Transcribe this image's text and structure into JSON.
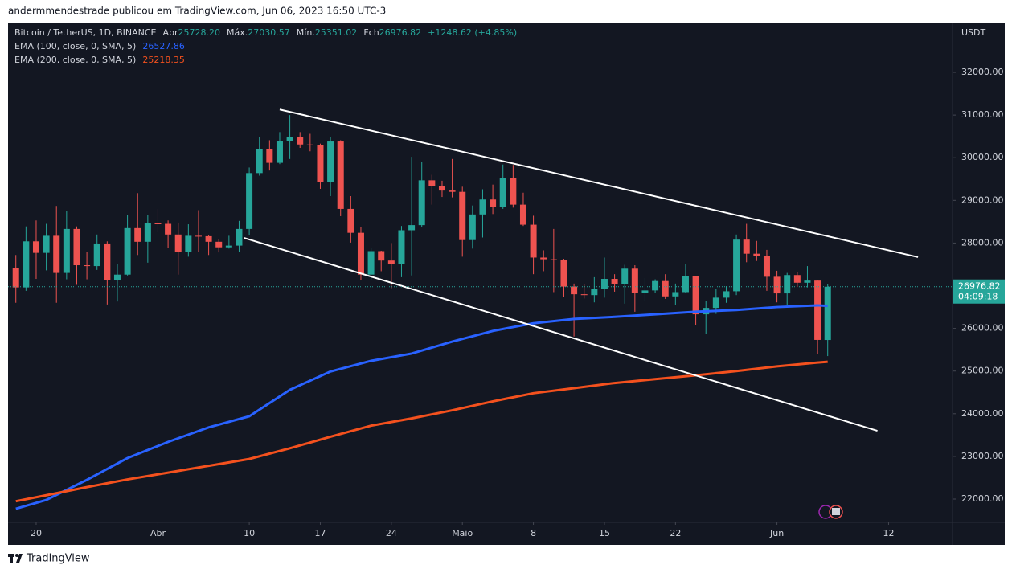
{
  "header": "andermmendestrade publicou em TradingView.com, Jun 06, 2023 16:50 UTC-3",
  "footer": "TradingView",
  "chart_data": {
    "type": "candlestick",
    "title": "Bitcoin / TetherUS, 1D, BINANCE",
    "ohlc_legend": [
      {
        "label": "Abr",
        "value": "25728.20"
      },
      {
        "label": "Máx.",
        "value": "27030.57"
      },
      {
        "label": "Mín.",
        "value": "25351.02"
      },
      {
        "label": "Fch",
        "value": "26976.82"
      }
    ],
    "change": "+1248.62 (+4.85%)",
    "axis_unit": "USDT",
    "countdown": "04:09:18",
    "up_color": "#26a69a",
    "down_color": "#ef5350",
    "x": [
      1,
      2,
      3,
      4,
      5,
      6,
      7,
      8,
      9,
      10,
      11,
      12,
      13,
      14,
      15,
      16,
      17,
      18,
      19,
      20,
      21,
      22,
      23,
      24,
      25,
      26,
      27,
      28,
      29,
      30,
      31,
      32,
      33,
      34,
      35,
      36,
      37,
      38,
      39,
      40,
      41,
      42,
      43,
      44,
      45,
      46,
      47,
      48,
      49,
      50,
      51,
      52,
      53,
      54,
      55,
      56,
      57,
      58,
      59,
      60,
      61,
      62,
      63,
      64,
      65,
      66,
      67,
      68,
      69,
      70,
      71,
      72,
      73,
      74,
      75,
      76,
      77,
      78,
      79,
      80,
      81
    ],
    "open": [
      27420,
      26960,
      28040,
      27770,
      28170,
      27300,
      28330,
      27480,
      27460,
      27990,
      27130,
      27260,
      28350,
      28030,
      28460,
      28450,
      28200,
      27790,
      28170,
      28160,
      28030,
      27900,
      27940,
      28330,
      29640,
      30200,
      29880,
      30390,
      30480,
      30310,
      30300,
      29430,
      30380,
      28800,
      28240,
      27260,
      27810,
      27590,
      27510,
      28300,
      28420,
      29470,
      29330,
      29230,
      29200,
      28070,
      28670,
      29020,
      28840,
      29530,
      28900,
      28430,
      27660,
      27620,
      27600,
      26980,
      26800,
      26780,
      26920,
      27160,
      27030,
      27400,
      26830,
      26890,
      27110,
      26750,
      26850,
      27220,
      26330,
      26480,
      26720,
      26870,
      28080,
      27750,
      27700,
      27210,
      26820,
      27250,
      27070,
      27120,
      25728.2
    ],
    "high": [
      27720,
      28390,
      28530,
      28450,
      28870,
      28750,
      28390,
      27800,
      28200,
      28040,
      27500,
      28650,
      29170,
      28650,
      28800,
      28530,
      28480,
      28440,
      28770,
      28190,
      28100,
      28170,
      28520,
      29770,
      30480,
      30410,
      30600,
      31000,
      30600,
      30560,
      30330,
      30490,
      30410,
      29100,
      28380,
      27880,
      27820,
      28000,
      28400,
      30020,
      29900,
      29600,
      29460,
      29970,
      29320,
      28880,
      29260,
      29370,
      29840,
      29830,
      29180,
      28640,
      27830,
      28330,
      27630,
      27050,
      27030,
      27200,
      27660,
      27270,
      27490,
      27480,
      27180,
      27150,
      27270,
      27050,
      27500,
      27230,
      26640,
      26920,
      26990,
      28200,
      28450,
      28050,
      27840,
      27350,
      27300,
      27330,
      27460,
      27140,
      27030.57
    ],
    "low": [
      26600,
      26880,
      27160,
      27360,
      26600,
      27150,
      27020,
      27150,
      27370,
      26560,
      26630,
      27240,
      27720,
      27540,
      28250,
      27880,
      27260,
      27680,
      27800,
      27720,
      27780,
      27870,
      27800,
      28180,
      29580,
      29700,
      29850,
      29970,
      30230,
      30150,
      29270,
      29100,
      28630,
      28010,
      27130,
      27130,
      27340,
      26940,
      27200,
      27240,
      28380,
      28900,
      29080,
      29070,
      27680,
      27870,
      28130,
      28680,
      28800,
      28830,
      28400,
      27270,
      27340,
      26850,
      26740,
      25810,
      26700,
      26610,
      26720,
      26860,
      26580,
      26390,
      26630,
      26840,
      26690,
      26540,
      26830,
      26080,
      25870,
      26340,
      26600,
      26780,
      27550,
      27580,
      26880,
      26610,
      26550,
      26970,
      26960,
      25390,
      25351.02
    ],
    "close": [
      26960,
      28040,
      27770,
      28170,
      27300,
      28330,
      27480,
      27460,
      27990,
      27130,
      27260,
      28350,
      28030,
      28460,
      28450,
      28200,
      27790,
      28170,
      28160,
      28030,
      27900,
      27940,
      28330,
      29640,
      30200,
      29880,
      30390,
      30480,
      30310,
      30300,
      29430,
      30380,
      28800,
      28240,
      27260,
      27810,
      27590,
      27510,
      28300,
      28420,
      29470,
      29330,
      29230,
      29200,
      28070,
      28670,
      29020,
      28840,
      29530,
      28900,
      28430,
      27660,
      27620,
      27600,
      26980,
      26800,
      26780,
      26920,
      27160,
      27030,
      27400,
      26830,
      26890,
      27110,
      26750,
      26850,
      27220,
      26330,
      26480,
      26720,
      26870,
      28080,
      27750,
      27700,
      27210,
      26820,
      27250,
      27070,
      27120,
      25730,
      26976.82
    ],
    "series": [
      {
        "name": "EMA (100, close, 0, SMA, 5)",
        "color": "#2962ff",
        "x": [
          1,
          4,
          8,
          12,
          16,
          20,
          24,
          28,
          32,
          36,
          40,
          44,
          48,
          52,
          56,
          60,
          64,
          68,
          72,
          76,
          80,
          81
        ],
        "values": [
          21774,
          21980,
          22450,
          22960,
          23340,
          23680,
          23940,
          24560,
          24990,
          25240,
          25410,
          25690,
          25940,
          26120,
          26220,
          26270,
          26330,
          26390,
          26430,
          26500,
          26540,
          26527.86
        ]
      },
      {
        "name": "EMA (200, close, 0, SMA, 5)",
        "color": "#f4511e",
        "x": [
          1,
          4,
          8,
          12,
          16,
          20,
          24,
          28,
          32,
          36,
          40,
          44,
          48,
          52,
          56,
          60,
          64,
          68,
          72,
          76,
          80,
          81
        ],
        "values": [
          21950,
          22090,
          22280,
          22460,
          22620,
          22780,
          22940,
          23190,
          23460,
          23720,
          23890,
          24080,
          24290,
          24480,
          24600,
          24720,
          24810,
          24900,
          25000,
          25110,
          25200,
          25218.35
        ]
      }
    ],
    "trend_lines": [
      {
        "color": "#ffffff",
        "x": [
          27,
          89.9
        ],
        "y": [
          31130,
          27670
        ]
      },
      {
        "color": "#ffffff",
        "x": [
          23.5,
          85.9
        ],
        "y": [
          28120,
          23600
        ]
      }
    ],
    "xlim": [
      0.23,
      93.3
    ],
    "ylim": [
      21454,
      33168
    ],
    "xticks": [
      {
        "value": 3,
        "label": "20"
      },
      {
        "value": 15,
        "label": "Abr"
      },
      {
        "value": 24,
        "label": "10"
      },
      {
        "value": 31,
        "label": "17"
      },
      {
        "value": 38,
        "label": "24"
      },
      {
        "value": 45,
        "label": "Maio"
      },
      {
        "value": 52,
        "label": "8"
      },
      {
        "value": 59,
        "label": "15"
      },
      {
        "value": 66,
        "label": "22"
      },
      {
        "value": 76,
        "label": "Jun"
      },
      {
        "value": 87,
        "label": "12"
      }
    ],
    "yticks": [
      {
        "value": 22000,
        "label": "22000.00"
      },
      {
        "value": 23000,
        "label": "23000.00"
      },
      {
        "value": 24000,
        "label": "24000.00"
      },
      {
        "value": 25000,
        "label": "25000.00"
      },
      {
        "value": 26000,
        "label": "26000.00"
      },
      {
        "value": 27000,
        "label": "27000.00"
      },
      {
        "value": 28000,
        "label": "28000.00"
      },
      {
        "value": 29000,
        "label": "29000.00"
      },
      {
        "value": 30000,
        "label": "30000.00"
      },
      {
        "value": 31000,
        "label": "31000.00"
      },
      {
        "value": 32000,
        "label": "32000.00"
      }
    ]
  }
}
